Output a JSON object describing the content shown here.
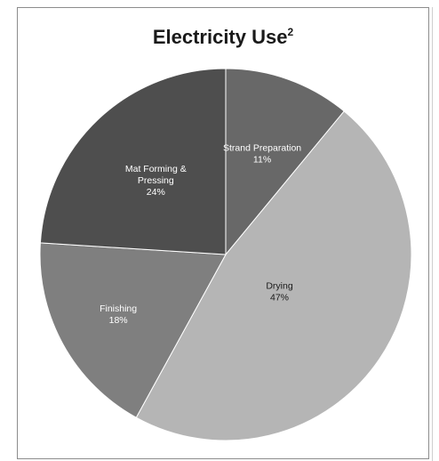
{
  "chart_data": {
    "type": "pie",
    "title": "Electricity Use",
    "title_superscript": "2",
    "slices": [
      {
        "label": "Strand Preparation",
        "value": 11,
        "value_label": "11%",
        "color": "#686868",
        "text_color": "#ffffff",
        "label_lines": [
          "Strand Preparation"
        ]
      },
      {
        "label": "Drying",
        "value": 47,
        "value_label": "47%",
        "color": "#b5b5b5",
        "text_color": "#1a1a1a",
        "label_lines": [
          "Drying"
        ]
      },
      {
        "label": "Finishing",
        "value": 18,
        "value_label": "18%",
        "color": "#7f7f7f",
        "text_color": "#ffffff",
        "label_lines": [
          "Finishing"
        ]
      },
      {
        "label": "Mat Forming & Pressing",
        "value": 24,
        "value_label": "24%",
        "color": "#4e4e4e",
        "text_color": "#ffffff",
        "label_lines": [
          "Mat Forming &",
          "Pressing"
        ]
      }
    ],
    "start": "12 o'clock",
    "direction": "clockwise",
    "legend": "none"
  }
}
